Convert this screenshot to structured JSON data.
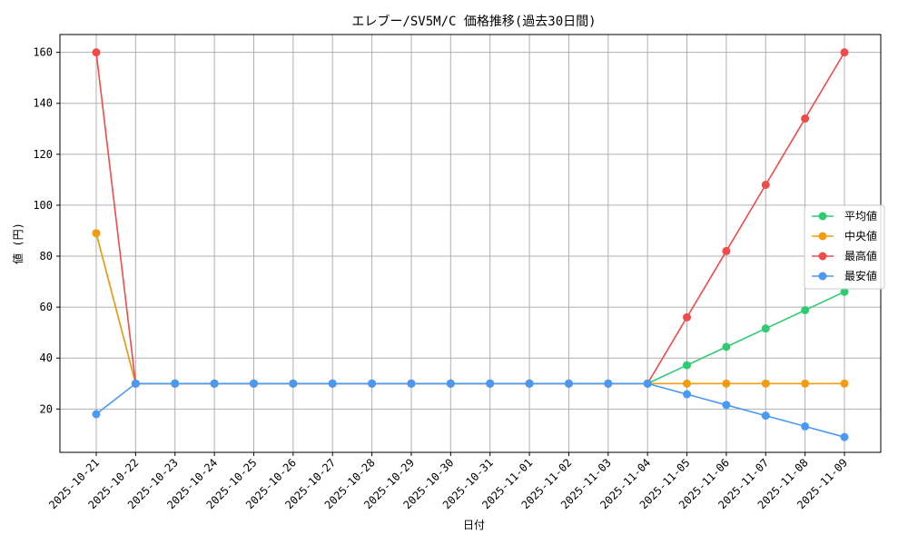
{
  "chart_data": {
    "type": "line",
    "title": "エレブー/SV5M/C 価格推移(過去30日間)",
    "xlabel": "日付",
    "ylabel": "値 (円)",
    "categories": [
      "2025-10-21",
      "2025-10-22",
      "2025-10-23",
      "2025-10-24",
      "2025-10-25",
      "2025-10-26",
      "2025-10-27",
      "2025-10-28",
      "2025-10-29",
      "2025-10-30",
      "2025-10-31",
      "2025-11-01",
      "2025-11-02",
      "2025-11-03",
      "2025-11-04",
      "2025-11-05",
      "2025-11-06",
      "2025-11-07",
      "2025-11-08",
      "2025-11-09"
    ],
    "ylim": [
      3,
      167
    ],
    "yticks": [
      20,
      40,
      60,
      80,
      100,
      120,
      140,
      160
    ],
    "grid": true,
    "legend_position": "center-right",
    "series": [
      {
        "name": "平均値",
        "color": "#2ecc71",
        "values": [
          89,
          30,
          30,
          30,
          30,
          30,
          30,
          30,
          30,
          30,
          30,
          30,
          30,
          30,
          30,
          37.2,
          44.4,
          51.6,
          58.8,
          66
        ]
      },
      {
        "name": "中央値",
        "color": "#f39c12",
        "values": [
          89,
          30,
          30,
          30,
          30,
          30,
          30,
          30,
          30,
          30,
          30,
          30,
          30,
          30,
          30,
          30,
          30,
          30,
          30,
          30
        ]
      },
      {
        "name": "最高値",
        "color": "#ef4b4b",
        "values": [
          160,
          30,
          30,
          30,
          30,
          30,
          30,
          30,
          30,
          30,
          30,
          30,
          30,
          30,
          30,
          56,
          82,
          108,
          134,
          160
        ]
      },
      {
        "name": "最安値",
        "color": "#4a9af5",
        "values": [
          18,
          30,
          30,
          30,
          30,
          30,
          30,
          30,
          30,
          30,
          30,
          30,
          30,
          30,
          30,
          25.8,
          21.6,
          17.4,
          13.2,
          9
        ]
      }
    ]
  }
}
